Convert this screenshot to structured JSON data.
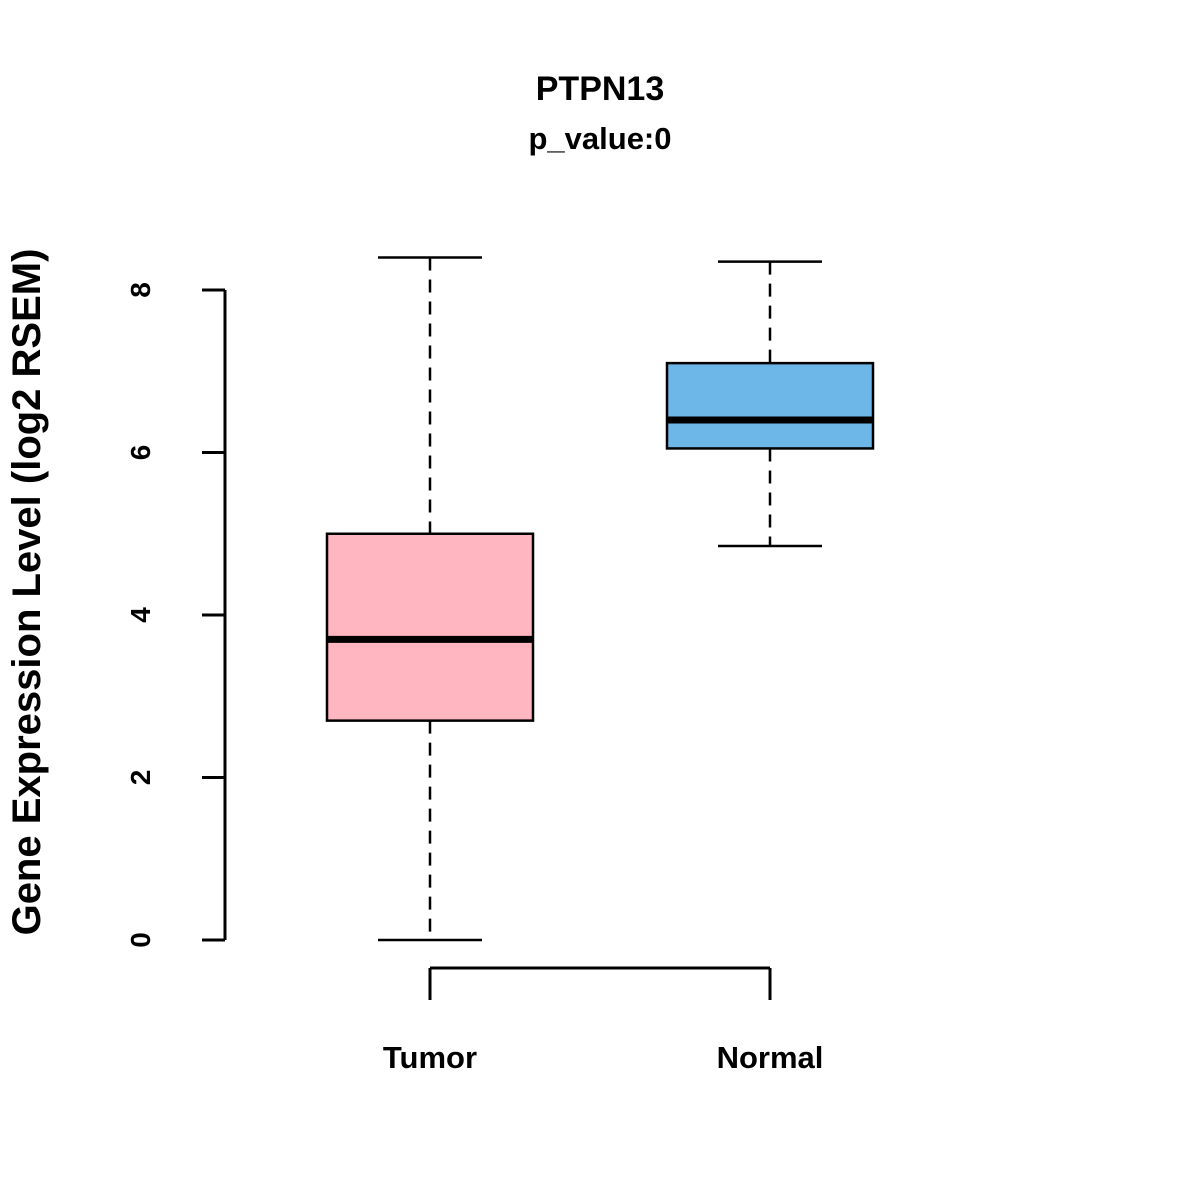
{
  "figure": {
    "background_color": "#ffffff",
    "axis_color": "#000000"
  },
  "chart_data": {
    "type": "boxplot",
    "title": "PTPN13",
    "subtitle": "p_value:0",
    "ylabel": "Gene Expression Level (log2 RSEM)",
    "xlabel": "",
    "yticks": [
      0,
      2,
      4,
      6,
      8
    ],
    "ylim": [
      0,
      8.5
    ],
    "grid": false,
    "legend": "none",
    "categories": [
      "Tumor",
      "Normal"
    ],
    "series": [
      {
        "name": "Tumor",
        "color": "#FFB6C1",
        "border_color": "#000000",
        "whisker_low": 0.0,
        "q1": 2.7,
        "median": 3.7,
        "q3": 5.0,
        "whisker_high": 8.4
      },
      {
        "name": "Normal",
        "color": "#6CB6E8",
        "border_color": "#000000",
        "whisker_low": 4.85,
        "q1": 6.05,
        "median": 6.4,
        "q3": 7.1,
        "whisker_high": 8.35
      }
    ]
  }
}
